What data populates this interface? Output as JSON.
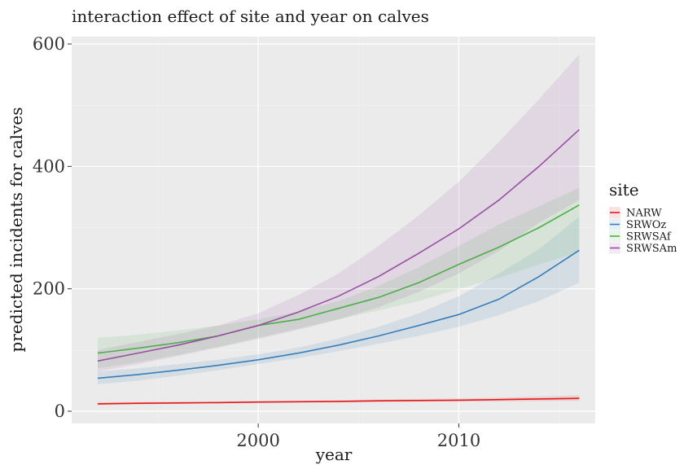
{
  "chart_data": {
    "type": "line",
    "title": "interaction effect of site and year on calves",
    "xlabel": "year",
    "ylabel": "predicted incidents for calves",
    "xlim": [
      1990.7,
      2016.8
    ],
    "ylim": [
      -20,
      612
    ],
    "x_ticks": [
      2000,
      2010
    ],
    "x_minor_ticks": [
      1995,
      2005,
      2015
    ],
    "y_ticks": [
      0,
      200,
      400,
      600
    ],
    "y_minor_ticks": [
      100,
      300,
      500
    ],
    "grid": true,
    "legend": {
      "title": "site",
      "position": "right"
    },
    "x": [
      1992,
      1994,
      1996,
      1998,
      2000,
      2002,
      2004,
      2006,
      2008,
      2010,
      2012,
      2014,
      2016
    ],
    "series": [
      {
        "name": "NARW",
        "color": "#e41a1c",
        "values": [
          12,
          13,
          13.5,
          14,
          15,
          15.5,
          16,
          17,
          17.5,
          18,
          19,
          20,
          21
        ],
        "lower": [
          10,
          11,
          12,
          13,
          13.5,
          14,
          14.5,
          15,
          15.5,
          16,
          16,
          16.5,
          17
        ],
        "upper": [
          15,
          15,
          15.5,
          16,
          16.5,
          17,
          18,
          19,
          20,
          21,
          22,
          24,
          26
        ]
      },
      {
        "name": "SRWOz",
        "color": "#377eb8",
        "values": [
          54,
          60,
          67,
          75,
          84,
          95,
          108,
          123,
          140,
          158,
          183,
          220,
          263
        ],
        "lower": [
          44,
          50,
          58,
          67,
          77,
          87,
          98,
          110,
          123,
          138,
          157,
          180,
          210
        ],
        "upper": [
          65,
          70,
          77,
          84,
          93,
          104,
          119,
          138,
          160,
          188,
          225,
          265,
          318
        ]
      },
      {
        "name": "SRWSAf",
        "color": "#4daf4a",
        "values": [
          95,
          103,
          112,
          123,
          140,
          150,
          168,
          186,
          210,
          240,
          268,
          300,
          337
        ],
        "lower": [
          70,
          80,
          92,
          105,
          120,
          135,
          150,
          165,
          180,
          200,
          218,
          240,
          260
        ],
        "upper": [
          120,
          125,
          132,
          140,
          150,
          163,
          180,
          205,
          235,
          270,
          305,
          335,
          365
        ]
      },
      {
        "name": "SRWSAm",
        "color": "#984ea3",
        "values": [
          82,
          95,
          108,
          123,
          140,
          162,
          188,
          220,
          258,
          298,
          345,
          400,
          460
        ],
        "lower": [
          65,
          77,
          90,
          104,
          118,
          133,
          150,
          170,
          195,
          225,
          262,
          308,
          345
        ],
        "upper": [
          100,
          113,
          126,
          140,
          160,
          190,
          225,
          270,
          320,
          375,
          440,
          510,
          583
        ]
      }
    ]
  }
}
